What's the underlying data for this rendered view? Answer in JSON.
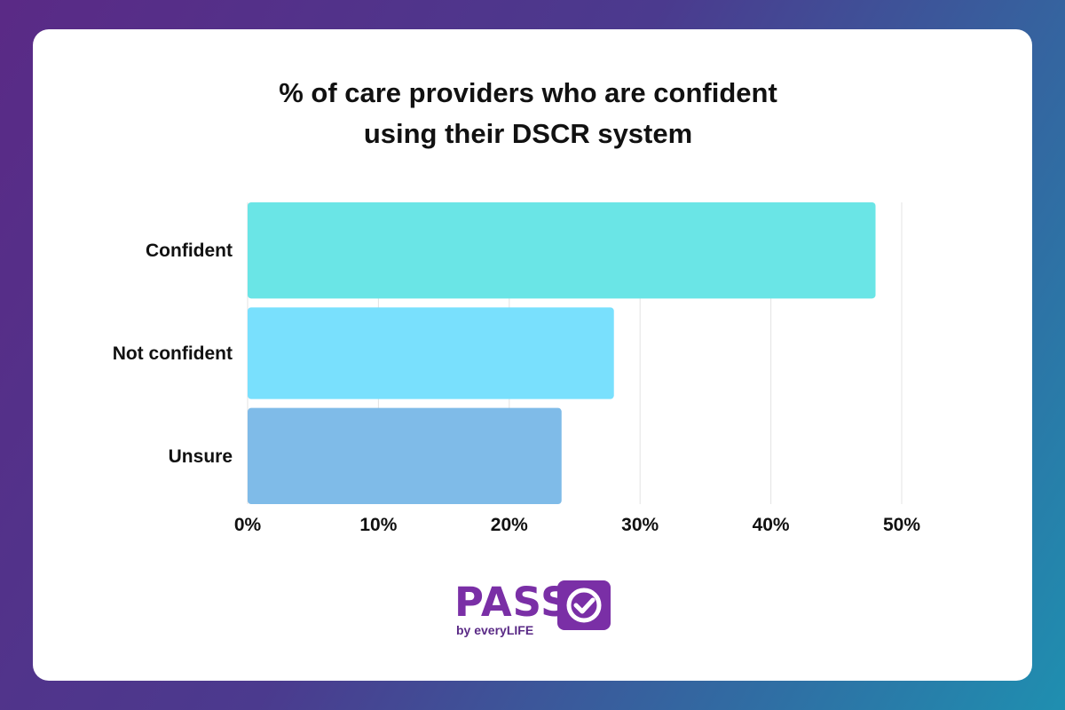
{
  "chart_data": {
    "type": "bar",
    "orientation": "horizontal",
    "title_lines": [
      "% of care providers who are confident",
      "using their DSCR system"
    ],
    "categories": [
      "Confident",
      "Not confident",
      "Unsure"
    ],
    "values": [
      48,
      28,
      24
    ],
    "colors": [
      "#6ae5e6",
      "#79e0fd",
      "#7fbbe8"
    ],
    "xlim": [
      0,
      50
    ],
    "ticks": [
      0,
      10,
      20,
      30,
      40,
      50
    ],
    "tick_labels": [
      "0%",
      "10%",
      "20%",
      "30%",
      "40%",
      "50%"
    ],
    "grid": true,
    "legend": "none"
  },
  "logo": {
    "word": "PASS",
    "sub": "by everyLIFE",
    "icon": "check-circle-icon",
    "color": "#7a2fa6"
  }
}
